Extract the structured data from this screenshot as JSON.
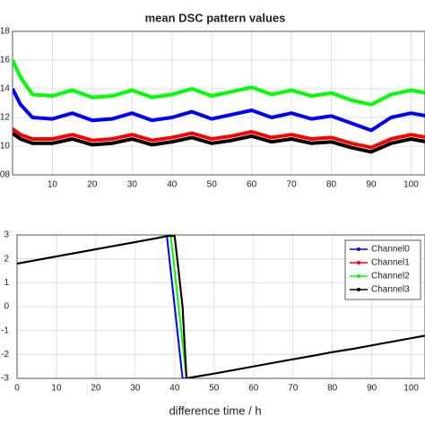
{
  "chart_data": [
    {
      "type": "line",
      "title": "mean DSC pattern values",
      "x": [
        0,
        2,
        5,
        10,
        15,
        20,
        25,
        30,
        35,
        40,
        45,
        50,
        55,
        60,
        65,
        70,
        75,
        80,
        85,
        90,
        95,
        100,
        104
      ],
      "xlim": [
        0,
        103.5
      ],
      "xticks": [
        10,
        20,
        30,
        40,
        50,
        60,
        70,
        80,
        90,
        100
      ],
      "ylim": [
        8,
        18
      ],
      "yticks": [
        {
          "value": 8,
          "label": "08"
        },
        10,
        12,
        14,
        16,
        18
      ],
      "grid": true,
      "series": [
        {
          "name": "Channel0",
          "color": "#0000ff",
          "values": [
            14,
            12.9,
            12,
            11.9,
            12.3,
            11.8,
            11.9,
            12.3,
            11.8,
            12,
            12.4,
            11.9,
            12.2,
            12.5,
            12,
            12.3,
            11.9,
            12.1,
            11.6,
            11.1,
            12,
            12.3,
            12.1
          ]
        },
        {
          "name": "Channel1",
          "color": "#ff0000",
          "values": [
            11.2,
            10.8,
            10.5,
            10.5,
            10.8,
            10.4,
            10.5,
            10.8,
            10.4,
            10.6,
            10.9,
            10.5,
            10.7,
            11,
            10.6,
            10.8,
            10.5,
            10.6,
            10.2,
            9.9,
            10.5,
            10.8,
            10.6
          ]
        },
        {
          "name": "Channel2",
          "color": "#00ff00",
          "values": [
            16,
            14.8,
            13.6,
            13.5,
            13.9,
            13.4,
            13.5,
            13.9,
            13.4,
            13.6,
            14,
            13.5,
            13.8,
            14.1,
            13.6,
            13.9,
            13.5,
            13.7,
            13.2,
            12.9,
            13.6,
            13.9,
            13.7
          ]
        },
        {
          "name": "Channel3",
          "color": "#000000",
          "values": [
            10.9,
            10.5,
            10.2,
            10.2,
            10.5,
            10.1,
            10.2,
            10.5,
            10.1,
            10.3,
            10.6,
            10.2,
            10.4,
            10.7,
            10.3,
            10.5,
            10.2,
            10.3,
            9.9,
            9.6,
            10.2,
            10.5,
            10.3
          ]
        }
      ]
    },
    {
      "type": "line",
      "x_label": "difference time / h",
      "x": [
        0,
        5,
        10,
        15,
        20,
        25,
        30,
        35,
        38,
        39,
        40,
        41,
        42,
        43,
        45,
        50,
        55,
        60,
        65,
        70,
        75,
        80,
        85,
        90,
        95,
        100,
        104
      ],
      "xlim": [
        0,
        103.5
      ],
      "xticks": [
        0,
        10,
        20,
        30,
        40,
        50,
        60,
        70,
        80,
        90,
        100
      ],
      "ylim": [
        -3,
        3
      ],
      "yticks": [
        -3,
        -2,
        -1,
        0,
        1,
        2,
        3
      ],
      "grid": true,
      "legend": "upper right",
      "series": [
        {
          "name": "Channel0",
          "color": "#0000ff",
          "values": [
            1.8,
            1.95,
            2.1,
            2.25,
            2.4,
            2.55,
            2.7,
            2.85,
            2.95,
            1.5,
            0,
            -1.5,
            -3,
            -3,
            -2.94,
            -2.8,
            -2.65,
            -2.5,
            -2.35,
            -2.2,
            -2.06,
            -1.9,
            -1.77,
            -1.62,
            -1.47,
            -1.32,
            -1.2
          ]
        },
        {
          "name": "Channel1",
          "color": "#ff0000",
          "values": [
            1.8,
            1.95,
            2.1,
            2.25,
            2.4,
            2.55,
            2.7,
            2.85,
            2.95,
            2.95,
            2.95,
            1.5,
            0,
            -3,
            -2.94,
            -2.8,
            -2.65,
            -2.5,
            -2.35,
            -2.2,
            -2.06,
            -1.9,
            -1.77,
            -1.62,
            -1.47,
            -1.32,
            -1.2
          ]
        },
        {
          "name": "Channel2",
          "color": "#00ff00",
          "values": [
            1.8,
            1.95,
            2.1,
            2.25,
            2.4,
            2.55,
            2.7,
            2.85,
            2.95,
            2.95,
            1.5,
            0,
            -1.5,
            -3,
            -2.94,
            -2.8,
            -2.65,
            -2.5,
            -2.35,
            -2.2,
            -2.06,
            -1.9,
            -1.77,
            -1.62,
            -1.47,
            -1.32,
            -1.2
          ]
        },
        {
          "name": "Channel3",
          "color": "#000000",
          "values": [
            1.8,
            1.95,
            2.1,
            2.25,
            2.4,
            2.55,
            2.7,
            2.85,
            2.95,
            2.95,
            2.95,
            1.5,
            0,
            -3,
            -2.94,
            -2.8,
            -2.65,
            -2.5,
            -2.35,
            -2.2,
            -2.06,
            -1.9,
            -1.77,
            -1.62,
            -1.47,
            -1.32,
            -1.2
          ]
        }
      ]
    }
  ]
}
